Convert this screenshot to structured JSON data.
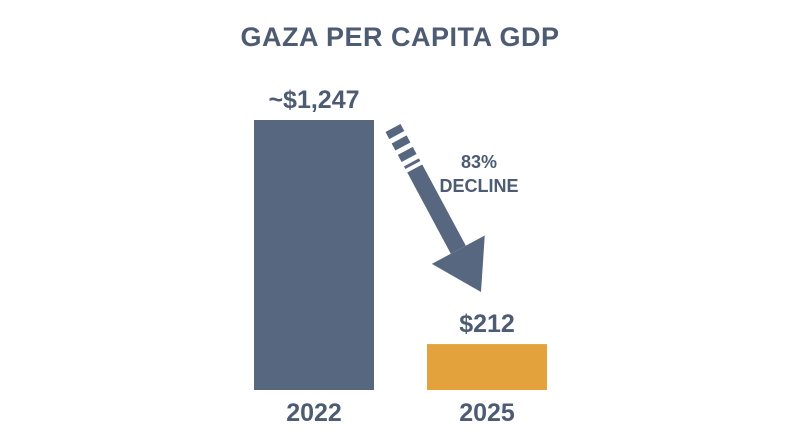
{
  "chart_data": {
    "type": "bar",
    "title": "GAZA PER CAPITA GDP",
    "categories": [
      "2022",
      "2025"
    ],
    "values": [
      1247,
      212
    ],
    "data_labels": [
      "~$1,247",
      "$212"
    ],
    "colors": [
      "#56677f",
      "#e4a23c"
    ],
    "xlabel": "",
    "ylabel": "",
    "grid": false,
    "annotation": {
      "lines": [
        "83%",
        "DECLINE"
      ],
      "arrow": "from 2022 bar toward 2025 bar",
      "color": "#56677f"
    }
  },
  "colors": {
    "text": "#4d5b73"
  }
}
